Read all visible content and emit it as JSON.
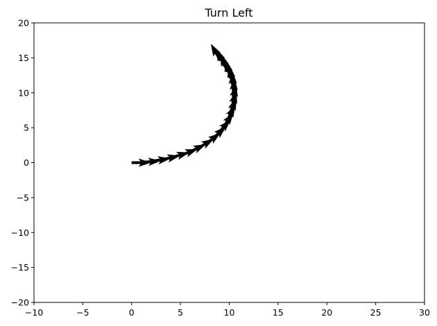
{
  "chart_data": {
    "type": "quiver",
    "title": "Turn Left",
    "xlabel": "",
    "ylabel": "",
    "xlim": [
      -10,
      30
    ],
    "ylim": [
      -20,
      20
    ],
    "xticks": [
      -10,
      -5,
      0,
      5,
      10,
      15,
      20,
      25,
      30
    ],
    "yticks": [
      -20,
      -15,
      -10,
      -5,
      0,
      5,
      10,
      15,
      20
    ],
    "xtick_labels": [
      "−10",
      "−5",
      "0",
      "5",
      "10",
      "15",
      "20",
      "25",
      "30"
    ],
    "ytick_labels": [
      "−20",
      "−15",
      "−10",
      "−5",
      "0",
      "5",
      "10",
      "15",
      "20"
    ],
    "grid": false,
    "arrow_color": "#000000",
    "arrows": [
      {
        "x": 0.0,
        "y": 0.0,
        "angle_deg": 0
      },
      {
        "x": 1.0,
        "y": 0.05,
        "angle_deg": 4
      },
      {
        "x": 2.0,
        "y": 0.2,
        "angle_deg": 8
      },
      {
        "x": 3.0,
        "y": 0.4,
        "angle_deg": 12
      },
      {
        "x": 4.0,
        "y": 0.7,
        "angle_deg": 16
      },
      {
        "x": 4.9,
        "y": 1.0,
        "angle_deg": 20
      },
      {
        "x": 5.8,
        "y": 1.45,
        "angle_deg": 25
      },
      {
        "x": 6.7,
        "y": 2.0,
        "angle_deg": 30
      },
      {
        "x": 7.5,
        "y": 2.6,
        "angle_deg": 36
      },
      {
        "x": 8.2,
        "y": 3.3,
        "angle_deg": 42
      },
      {
        "x": 8.8,
        "y": 4.1,
        "angle_deg": 48
      },
      {
        "x": 9.3,
        "y": 4.9,
        "angle_deg": 55
      },
      {
        "x": 9.7,
        "y": 5.8,
        "angle_deg": 62
      },
      {
        "x": 10.0,
        "y": 6.7,
        "angle_deg": 68
      },
      {
        "x": 10.2,
        "y": 7.6,
        "angle_deg": 74
      },
      {
        "x": 10.35,
        "y": 8.5,
        "angle_deg": 80
      },
      {
        "x": 10.4,
        "y": 9.4,
        "angle_deg": 86
      },
      {
        "x": 10.4,
        "y": 10.3,
        "angle_deg": 92
      },
      {
        "x": 10.3,
        "y": 11.2,
        "angle_deg": 98
      },
      {
        "x": 10.1,
        "y": 12.1,
        "angle_deg": 104
      },
      {
        "x": 9.8,
        "y": 13.0,
        "angle_deg": 110
      },
      {
        "x": 9.5,
        "y": 13.8,
        "angle_deg": 115
      },
      {
        "x": 9.1,
        "y": 14.6,
        "angle_deg": 120
      }
    ]
  }
}
